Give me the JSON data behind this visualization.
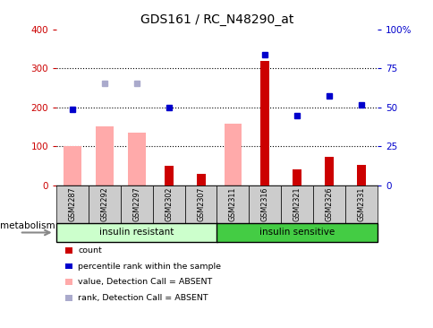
{
  "title": "GDS161 / RC_N48290_at",
  "samples": [
    "GSM2287",
    "GSM2292",
    "GSM2297",
    "GSM2302",
    "GSM2307",
    "GSM2311",
    "GSM2316",
    "GSM2321",
    "GSM2326",
    "GSM2331"
  ],
  "count_values": [
    0,
    0,
    0,
    50,
    30,
    0,
    320,
    40,
    73,
    52
  ],
  "rank_values": [
    195,
    0,
    0,
    200,
    0,
    0,
    335,
    178,
    230,
    207
  ],
  "absent_value_values": [
    100,
    152,
    135,
    0,
    0,
    158,
    0,
    0,
    0,
    0
  ],
  "absent_rank_values": [
    0,
    262,
    262,
    0,
    0,
    0,
    0,
    0,
    0,
    0
  ],
  "has_count": [
    false,
    false,
    false,
    true,
    true,
    false,
    true,
    true,
    true,
    true
  ],
  "has_rank": [
    true,
    false,
    false,
    true,
    false,
    false,
    true,
    true,
    true,
    true
  ],
  "has_absent_value": [
    true,
    true,
    true,
    false,
    false,
    true,
    false,
    false,
    false,
    false
  ],
  "has_absent_rank": [
    false,
    true,
    true,
    false,
    false,
    false,
    false,
    false,
    false,
    false
  ],
  "ylim_left": [
    0,
    400
  ],
  "ylim_right": [
    0,
    100
  ],
  "yticks_left": [
    0,
    100,
    200,
    300,
    400
  ],
  "yticks_right": [
    0,
    25,
    50,
    75,
    100
  ],
  "yticklabels_right": [
    "0",
    "25",
    "50",
    "75",
    "100%"
  ],
  "color_count": "#cc0000",
  "color_rank": "#0000cc",
  "color_absent_value": "#ffaaaa",
  "color_absent_rank": "#aaaacc",
  "color_ir_bg": "#ccffcc",
  "color_is_bg": "#44cc44",
  "color_tick_bg": "#cccccc",
  "legend_items": [
    "count",
    "percentile rank within the sample",
    "value, Detection Call = ABSENT",
    "rank, Detection Call = ABSENT"
  ],
  "legend_colors": [
    "#cc0000",
    "#0000cc",
    "#ffaaaa",
    "#aaaacc"
  ]
}
